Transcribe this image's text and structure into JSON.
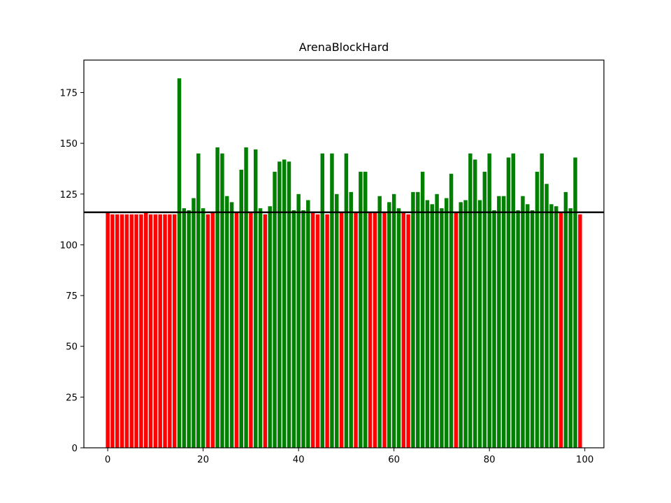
{
  "chart_data": {
    "type": "bar",
    "title": "ArenaBlockHard",
    "xlabel": "",
    "ylabel": "",
    "xlim": [
      -5,
      104
    ],
    "ylim": [
      0,
      191
    ],
    "xticks": [
      0,
      20,
      40,
      60,
      80,
      100
    ],
    "yticks": [
      0,
      25,
      50,
      75,
      100,
      125,
      150,
      175
    ],
    "reference_line": 116,
    "grid": false,
    "colors": {
      "below": "#ff0000",
      "above": "#008000",
      "line": "#000000"
    },
    "x": [
      0,
      1,
      2,
      3,
      4,
      5,
      6,
      7,
      8,
      9,
      10,
      11,
      12,
      13,
      14,
      15,
      16,
      17,
      18,
      19,
      20,
      21,
      22,
      23,
      24,
      25,
      26,
      27,
      28,
      29,
      30,
      31,
      32,
      33,
      34,
      35,
      36,
      37,
      38,
      39,
      40,
      41,
      42,
      43,
      44,
      45,
      46,
      47,
      48,
      49,
      50,
      51,
      52,
      53,
      54,
      55,
      56,
      57,
      58,
      59,
      60,
      61,
      62,
      63,
      64,
      65,
      66,
      67,
      68,
      69,
      70,
      71,
      72,
      73,
      74,
      75,
      76,
      77,
      78,
      79,
      80,
      81,
      82,
      83,
      84,
      85,
      86,
      87,
      88,
      89,
      90,
      91,
      92,
      93,
      94,
      95,
      96,
      97,
      98,
      99
    ],
    "values": [
      116,
      115,
      115,
      115,
      115,
      115,
      115,
      115,
      116,
      115,
      115,
      115,
      115,
      115,
      115,
      182,
      118,
      117,
      123,
      145,
      118,
      115,
      116,
      148,
      145,
      124,
      121,
      116,
      137,
      148,
      116,
      147,
      118,
      115,
      119,
      136,
      141,
      142,
      141,
      117,
      125,
      117,
      122,
      116,
      115,
      145,
      115,
      145,
      125,
      116,
      145,
      126,
      116,
      136,
      136,
      116,
      116,
      124,
      116,
      121,
      125,
      118,
      116,
      115,
      126,
      126,
      136,
      122,
      120,
      125,
      118,
      123,
      135,
      116,
      121,
      122,
      145,
      142,
      122,
      136,
      145,
      117,
      124,
      124,
      143,
      145,
      117,
      124,
      120,
      117,
      136,
      145,
      130,
      120,
      119,
      116,
      126,
      118,
      143,
      115
    ]
  }
}
